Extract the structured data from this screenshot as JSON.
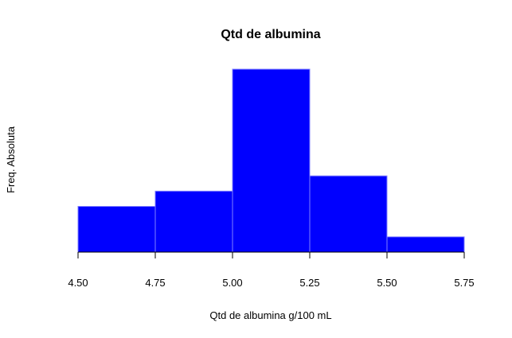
{
  "chart_data": {
    "type": "bar",
    "title": "Qtd de albumina",
    "xlabel": "Qtd de albumina g/100 mL",
    "ylabel": "Freq. Absoluta",
    "bins": [
      {
        "from": 4.5,
        "to": 4.75,
        "value": 3
      },
      {
        "from": 4.75,
        "to": 5.0,
        "value": 4
      },
      {
        "from": 5.0,
        "to": 5.25,
        "value": 12
      },
      {
        "from": 5.25,
        "to": 5.5,
        "value": 5
      },
      {
        "from": 5.5,
        "to": 5.75,
        "value": 1
      }
    ],
    "x_ticks": [
      "4.50",
      "4.75",
      "5.00",
      "5.25",
      "5.50",
      "5.75"
    ],
    "xlim": [
      4.5,
      5.75
    ],
    "ylim": [
      0,
      12
    ],
    "y_axis_shown": false,
    "grid": false,
    "colors": {
      "bar_fill": "#0000ff",
      "bar_stroke": "#8080ff",
      "axis": "#000000"
    }
  }
}
